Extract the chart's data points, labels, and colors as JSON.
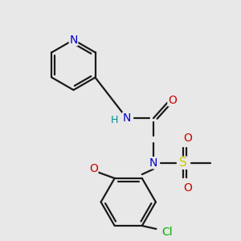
{
  "background_color": "#e8e8e8",
  "figure_size": [
    3.0,
    3.0
  ],
  "dpi": 100,
  "bond_color": "#1a1a1a",
  "bond_lw": 1.6,
  "atom_colors": {
    "N": "#0000cc",
    "O": "#cc0000",
    "S": "#cccc00",
    "Cl": "#00aa00",
    "H": "#008b8b",
    "C": "#1a1a1a"
  }
}
